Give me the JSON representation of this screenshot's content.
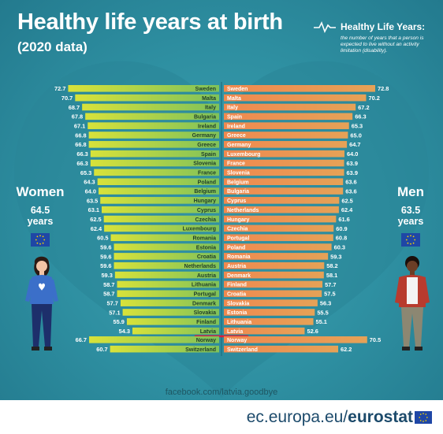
{
  "header": {
    "title": "Healthy life years at birth",
    "subtitle": "(2020 data)"
  },
  "definition": {
    "title": "Healthy Life Years:",
    "text": "the number of years that a person is expected to live without an activity limitation (disability)."
  },
  "women": {
    "label": "Women",
    "value": "64.5",
    "unit": "years"
  },
  "men": {
    "label": "Men",
    "value": "63.5",
    "unit": "years"
  },
  "chart_data": [
    {
      "type": "bar",
      "series": [
        {
          "name": "Women",
          "color_start": "#7fc15a",
          "color_end": "#d8e23a",
          "rows": [
            {
              "country": "Sweden",
              "value": 72.7
            },
            {
              "country": "Malta",
              "value": 70.7
            },
            {
              "country": "Italy",
              "value": 68.7
            },
            {
              "country": "Bulgaria",
              "value": 67.8
            },
            {
              "country": "Ireland",
              "value": 67.1
            },
            {
              "country": "Germany",
              "value": 66.8
            },
            {
              "country": "Greece",
              "value": 66.8
            },
            {
              "country": "Spain",
              "value": 66.3
            },
            {
              "country": "Slovenia",
              "value": 66.3
            },
            {
              "country": "France",
              "value": 65.3
            },
            {
              "country": "Poland",
              "value": 64.3
            },
            {
              "country": "Belgium",
              "value": 64.0
            },
            {
              "country": "Hungary",
              "value": 63.5
            },
            {
              "country": "Cyprus",
              "value": 63.1
            },
            {
              "country": "Czechia",
              "value": 62.5
            },
            {
              "country": "Luxembourg",
              "value": 62.4
            },
            {
              "country": "Romania",
              "value": 60.5
            },
            {
              "country": "Estonia",
              "value": 59.6
            },
            {
              "country": "Croatia",
              "value": 59.6
            },
            {
              "country": "Netherlands",
              "value": 59.6
            },
            {
              "country": "Austria",
              "value": 59.3
            },
            {
              "country": "Lithuania",
              "value": 58.7
            },
            {
              "country": "Portugal",
              "value": 58.7
            },
            {
              "country": "Denmark",
              "value": 57.7
            },
            {
              "country": "Slovakia",
              "value": 57.1
            },
            {
              "country": "Finland",
              "value": 55.9
            },
            {
              "country": "Latvia",
              "value": 54.3
            }
          ],
          "extra": [
            {
              "country": "Norway",
              "value": 66.7
            },
            {
              "country": "Switzerland",
              "value": 60.7
            }
          ]
        }
      ]
    },
    {
      "type": "bar",
      "series": [
        {
          "name": "Men",
          "color_start": "#f0894f",
          "color_end": "#e5a257",
          "rows": [
            {
              "country": "Sweden",
              "value": 72.8
            },
            {
              "country": "Malta",
              "value": 70.2
            },
            {
              "country": "Italy",
              "value": 67.2
            },
            {
              "country": "Spain",
              "value": 66.3
            },
            {
              "country": "Ireland",
              "value": 65.3
            },
            {
              "country": "Greece",
              "value": 65.0
            },
            {
              "country": "Germany",
              "value": 64.7
            },
            {
              "country": "Luxembourg",
              "value": 64.0
            },
            {
              "country": "France",
              "value": 63.9
            },
            {
              "country": "Slovenia",
              "value": 63.9
            },
            {
              "country": "Belgium",
              "value": 63.6
            },
            {
              "country": "Bulgaria",
              "value": 63.6
            },
            {
              "country": "Cyprus",
              "value": 62.5
            },
            {
              "country": "Netherlands",
              "value": 62.4
            },
            {
              "country": "Hungary",
              "value": 61.6
            },
            {
              "country": "Czechia",
              "value": 60.9
            },
            {
              "country": "Portugal",
              "value": 60.8
            },
            {
              "country": "Poland",
              "value": 60.3
            },
            {
              "country": "Romania",
              "value": 59.3
            },
            {
              "country": "Austria",
              "value": 58.2
            },
            {
              "country": "Denmark",
              "value": 58.1
            },
            {
              "country": "Finland",
              "value": 57.7
            },
            {
              "country": "Croatia",
              "value": 57.5
            },
            {
              "country": "Slovakia",
              "value": 56.3
            },
            {
              "country": "Estonia",
              "value": 55.5
            },
            {
              "country": "Lithuania",
              "value": 55.1
            },
            {
              "country": "Latvia",
              "value": 52.6
            }
          ],
          "extra": [
            {
              "country": "Norway",
              "value": 70.5
            },
            {
              "country": "Switzerland",
              "value": 62.2
            }
          ]
        }
      ]
    }
  ],
  "footer": {
    "facebook": "facebook.com/latvia.goodbye",
    "site_prefix": "ec.europa.eu/",
    "site_brand": "eurostat"
  },
  "colors": {
    "background": "#2e8fa1",
    "heart": "#2a8598",
    "highlight": "#d8213a",
    "text_dark": "#1c4a6b"
  }
}
